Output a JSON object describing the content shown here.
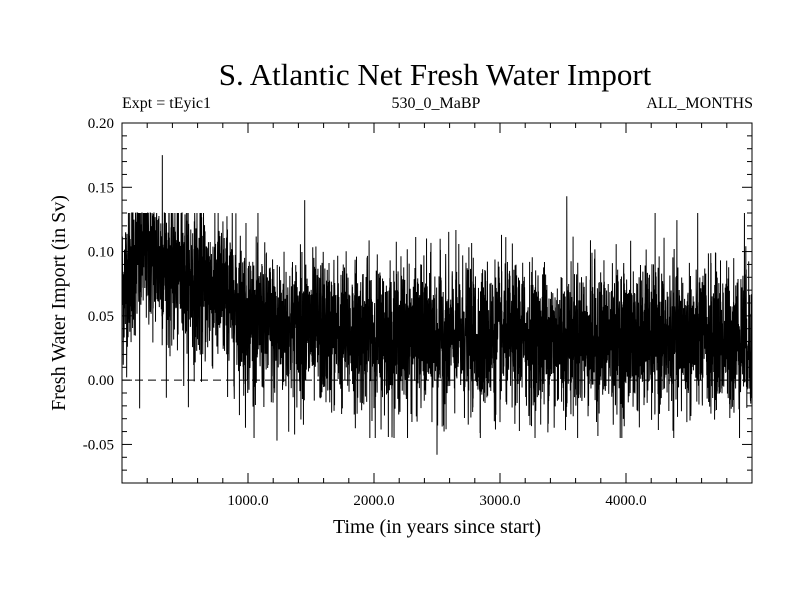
{
  "chart_data": {
    "type": "line",
    "title": "S. Atlantic Net Fresh Water Import",
    "subtitle_left": "Expt = tEyic1",
    "subtitle_center": "530_0_MaBP",
    "subtitle_right": "ALL_MONTHS",
    "xlabel": "Time (in years since start)",
    "ylabel": "Fresh Water Import (in Sv)",
    "xlim": [
      0,
      5000
    ],
    "ylim": [
      -0.08,
      0.2
    ],
    "x_ticks": [
      1000,
      2000,
      3000,
      4000
    ],
    "x_tick_labels": [
      "1000.0",
      "2000.0",
      "3000.0",
      "4000.0"
    ],
    "y_ticks": [
      -0.05,
      0.0,
      0.05,
      0.1,
      0.15,
      0.2
    ],
    "y_tick_labels": [
      "-0.05",
      "0.00",
      "0.05",
      "0.10",
      "0.15",
      "0.20"
    ],
    "reference_line": {
      "y": 0.0,
      "style": "dashed"
    },
    "series": [
      {
        "name": "Net fresh water import",
        "description": "annual values, ~5000 years, dense noisy series",
        "baseline": [
          {
            "x": 0,
            "y": 0.07
          },
          {
            "x": 100,
            "y": 0.095
          },
          {
            "x": 200,
            "y": 0.1
          },
          {
            "x": 400,
            "y": 0.085
          },
          {
            "x": 600,
            "y": 0.075
          },
          {
            "x": 800,
            "y": 0.068
          },
          {
            "x": 950,
            "y": 0.055
          },
          {
            "x": 1100,
            "y": 0.042
          },
          {
            "x": 1500,
            "y": 0.038
          },
          {
            "x": 2000,
            "y": 0.035
          },
          {
            "x": 3000,
            "y": 0.033
          },
          {
            "x": 4000,
            "y": 0.032
          },
          {
            "x": 5000,
            "y": 0.032
          }
        ],
        "spread": 0.028,
        "extremes": [
          {
            "x": 320,
            "y": 0.175
          },
          {
            "x": 140,
            "y": -0.022
          },
          {
            "x": 980,
            "y": -0.037
          },
          {
            "x": 1230,
            "y": -0.047
          },
          {
            "x": 1450,
            "y": 0.14
          },
          {
            "x": 2500,
            "y": -0.058
          },
          {
            "x": 3530,
            "y": 0.143
          },
          {
            "x": 3430,
            "y": -0.037
          },
          {
            "x": 4940,
            "y": 0.13
          }
        ]
      }
    ]
  }
}
